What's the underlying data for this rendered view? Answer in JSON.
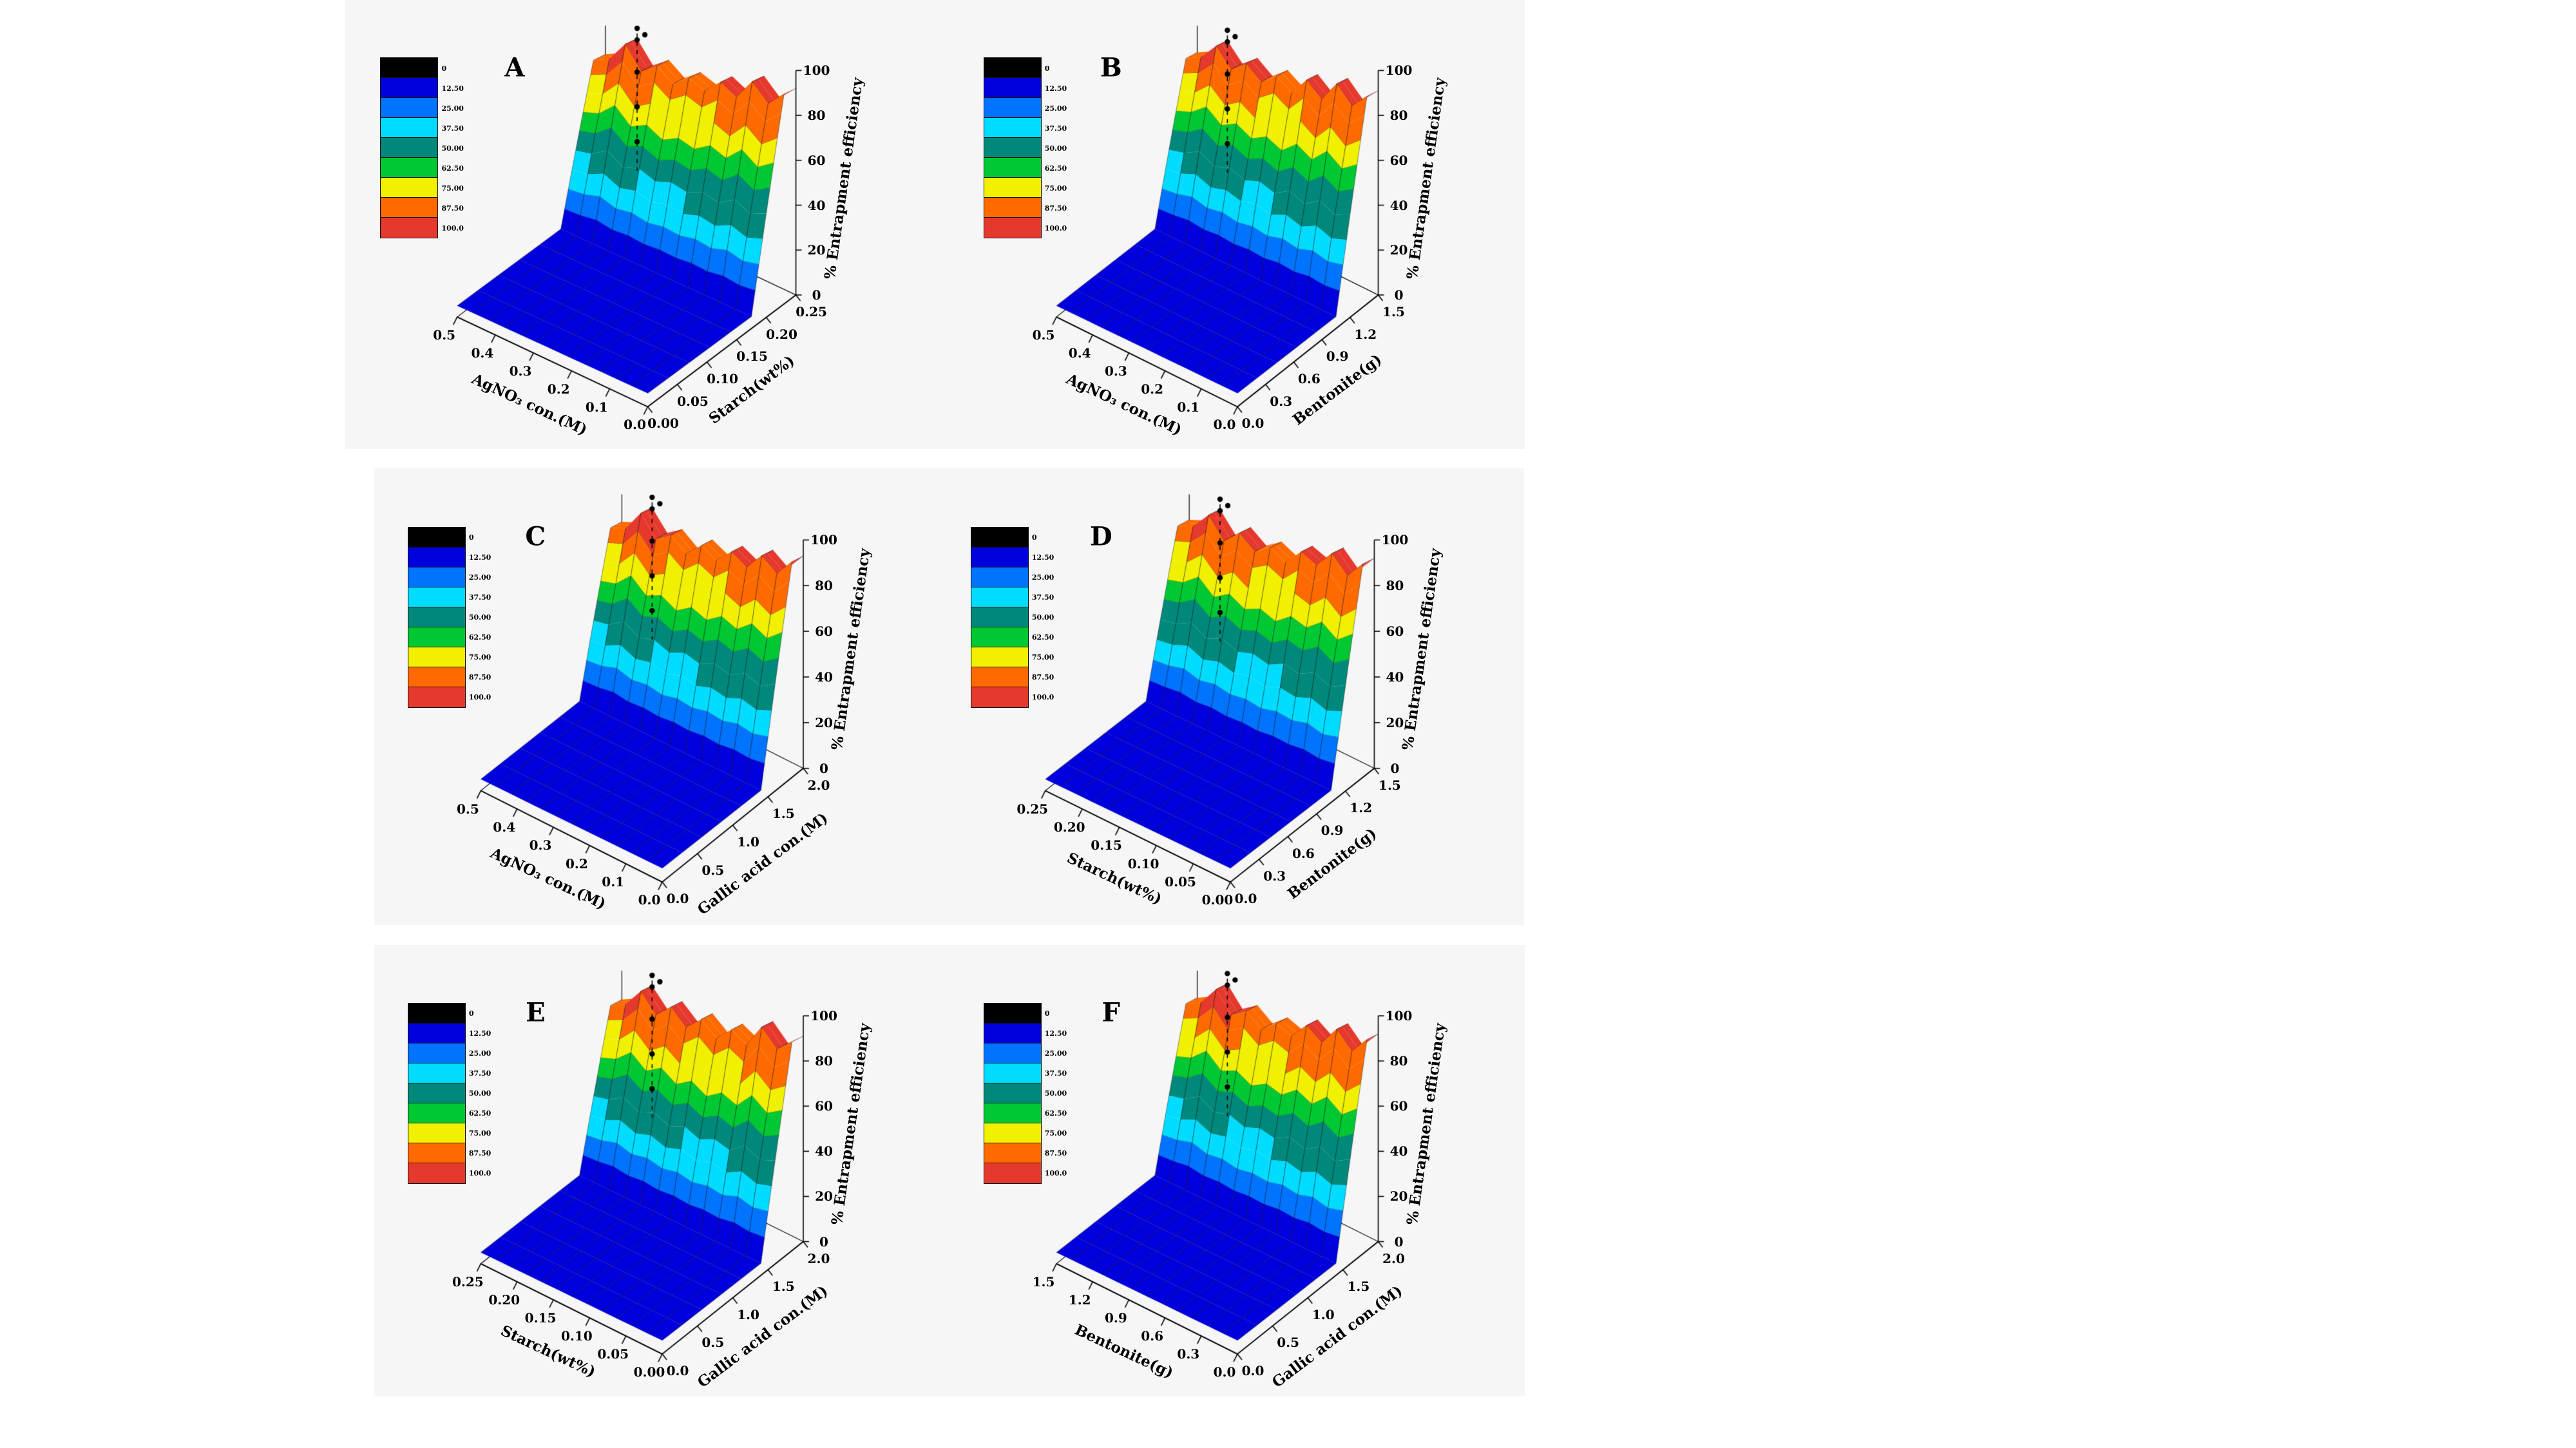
{
  "figure": {
    "background": "#ffffff",
    "panel_background": "#f6f6f6"
  },
  "legend": {
    "levels": [
      "0",
      "12.50",
      "25.00",
      "37.50",
      "50.00",
      "62.50",
      "75.00",
      "87.50",
      "100.0"
    ],
    "colors": [
      "#000000",
      "#0000dd",
      "#0073ff",
      "#00dcff",
      "#00897b",
      "#00c832",
      "#f0f000",
      "#ff6a00",
      "#e6392e"
    ]
  },
  "chart_data": [
    {
      "type": "surface3d",
      "letter": "A",
      "x_axis": {
        "label": "AgNO₃ con.(M)",
        "ticks": [
          "0.0",
          "0.1",
          "0.2",
          "0.3",
          "0.4",
          "0.5"
        ]
      },
      "y_axis": {
        "label": "Starch(wt%)",
        "ticks": [
          "0.00",
          "0.05",
          "0.10",
          "0.15",
          "0.20",
          "0.25"
        ]
      },
      "z_axis": {
        "label": "% Entrapment efficiency",
        "ticks": [
          "0",
          "20",
          "40",
          "60",
          "80",
          "100"
        ],
        "range": [
          0,
          100
        ]
      },
      "surface": {
        "floor": 5,
        "crest": [
          92,
          86,
          94,
          85,
          90,
          84,
          88,
          83,
          90,
          85,
          97,
          87,
          84
        ],
        "cliff_start": 0.7,
        "cliff_end": 0.92
      }
    },
    {
      "type": "surface3d",
      "letter": "B",
      "x_axis": {
        "label": "AgNO₃ con.(M)",
        "ticks": [
          "0.0",
          "0.1",
          "0.2",
          "0.3",
          "0.4",
          "0.5"
        ]
      },
      "y_axis": {
        "label": "Bentonite(g)",
        "ticks": [
          "0.0",
          "0.3",
          "0.6",
          "0.9",
          "1.2",
          "1.5"
        ]
      },
      "z_axis": {
        "label": "% Entrapment efficiency",
        "ticks": [
          "0",
          "20",
          "40",
          "60",
          "80",
          "100"
        ],
        "range": [
          0,
          100
        ]
      },
      "surface": {
        "floor": 5,
        "crest": [
          91,
          85,
          93,
          84,
          91,
          83,
          89,
          84,
          91,
          86,
          96,
          88,
          85
        ],
        "cliff_start": 0.7,
        "cliff_end": 0.92
      }
    },
    {
      "type": "surface3d",
      "letter": "C",
      "x_axis": {
        "label": "AgNO₃ con.(M)",
        "ticks": [
          "0.0",
          "0.1",
          "0.2",
          "0.3",
          "0.4",
          "0.5"
        ]
      },
      "y_axis": {
        "label": "Gallic acid con.(M)",
        "ticks": [
          "0.0",
          "0.5",
          "1.0",
          "1.5",
          "2.0"
        ]
      },
      "z_axis": {
        "label": "% Entrapment efficiency",
        "ticks": [
          "0",
          "20",
          "40",
          "60",
          "80",
          "100"
        ],
        "range": [
          0,
          100
        ]
      },
      "surface": {
        "floor": 5,
        "crest": [
          93,
          86,
          92,
          85,
          90,
          84,
          89,
          83,
          90,
          86,
          97,
          87,
          85
        ],
        "cliff_start": 0.7,
        "cliff_end": 0.92
      }
    },
    {
      "type": "surface3d",
      "letter": "D",
      "x_axis": {
        "label": "Starch(wt%)",
        "ticks": [
          "0.00",
          "0.05",
          "0.10",
          "0.15",
          "0.20",
          "0.25"
        ]
      },
      "y_axis": {
        "label": "Bentonite(g)",
        "ticks": [
          "0.0",
          "0.3",
          "0.6",
          "0.9",
          "1.2",
          "1.5"
        ]
      },
      "z_axis": {
        "label": "% Entrapment efficiency",
        "ticks": [
          "0",
          "20",
          "40",
          "60",
          "80",
          "100"
        ],
        "range": [
          0,
          100
        ]
      },
      "surface": {
        "floor": 5,
        "crest": [
          92,
          85,
          93,
          86,
          90,
          83,
          88,
          84,
          91,
          85,
          96,
          88,
          86
        ],
        "cliff_start": 0.7,
        "cliff_end": 0.92
      }
    },
    {
      "type": "surface3d",
      "letter": "E",
      "x_axis": {
        "label": "Starch(wt%)",
        "ticks": [
          "0.00",
          "0.05",
          "0.10",
          "0.15",
          "0.20",
          "0.25"
        ]
      },
      "y_axis": {
        "label": "Gallic acid con.(M)",
        "ticks": [
          "0.0",
          "0.5",
          "1.0",
          "1.5",
          "2.0"
        ]
      },
      "z_axis": {
        "label": "% Entrapment efficiency",
        "ticks": [
          "0",
          "20",
          "40",
          "60",
          "80",
          "100"
        ],
        "range": [
          0,
          100
        ]
      },
      "surface": {
        "floor": 5,
        "crest": [
          91,
          86,
          94,
          84,
          89,
          83,
          90,
          84,
          92,
          86,
          96,
          87,
          84
        ],
        "cliff_start": 0.7,
        "cliff_end": 0.92
      }
    },
    {
      "type": "surface3d",
      "letter": "F",
      "x_axis": {
        "label": "Bentonite(g)",
        "ticks": [
          "0.0",
          "0.3",
          "0.6",
          "0.9",
          "1.2",
          "1.5"
        ]
      },
      "y_axis": {
        "label": "Gallic acid con.(M)",
        "ticks": [
          "0.0",
          "0.5",
          "1.0",
          "1.5",
          "2.0"
        ]
      },
      "z_axis": {
        "label": "% Entrapment efficiency",
        "ticks": [
          "0",
          "20",
          "40",
          "60",
          "80",
          "100"
        ],
        "range": [
          0,
          100
        ]
      },
      "surface": {
        "floor": 5,
        "crest": [
          92,
          85,
          93,
          85,
          91,
          84,
          88,
          83,
          90,
          86,
          97,
          88,
          85
        ],
        "cliff_start": 0.7,
        "cliff_end": 0.92
      }
    }
  ]
}
